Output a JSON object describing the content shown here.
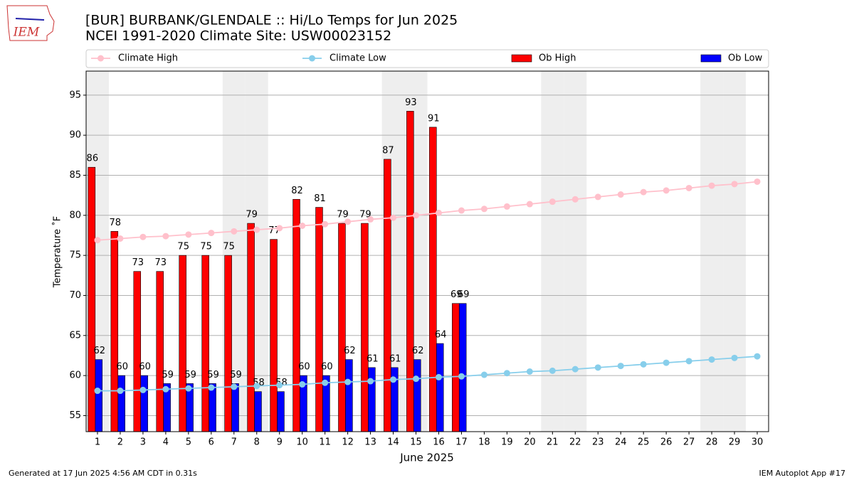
{
  "chart_data": {
    "type": "bar",
    "logo_text": "IEM",
    "title": "[BUR] BURBANK/GLENDALE :: Hi/Lo Temps for Jun 2025",
    "subtitle": "NCEI 1991-2020 Climate Site: USW00023152",
    "y_label": "Temperature ˚F",
    "x_label": "June 2025",
    "footer_left": "Generated at 17 Jun 2025 4:56 AM CDT in 0.31s",
    "footer_right": "IEM Autoplot App #17",
    "x": [
      1,
      2,
      3,
      4,
      5,
      6,
      7,
      8,
      9,
      10,
      11,
      12,
      13,
      14,
      15,
      16,
      17,
      18,
      19,
      20,
      21,
      22,
      23,
      24,
      25,
      26,
      27,
      28,
      29,
      30
    ],
    "xlim": [
      0.5,
      30.5
    ],
    "ylim": [
      53,
      98
    ],
    "yticks": [
      55,
      60,
      65,
      70,
      75,
      80,
      85,
      90,
      95
    ],
    "grid": true,
    "shaded_days": [
      1,
      7,
      8,
      14,
      15,
      21,
      22,
      28,
      29
    ],
    "series": [
      {
        "name": "Climate High",
        "kind": "line",
        "color": "#ffc0cb",
        "values": [
          76.9,
          77.1,
          77.3,
          77.4,
          77.6,
          77.8,
          78.0,
          78.2,
          78.4,
          78.7,
          78.9,
          79.2,
          79.5,
          79.7,
          80.0,
          80.3,
          80.6,
          80.8,
          81.1,
          81.4,
          81.7,
          82.0,
          82.3,
          82.6,
          82.9,
          83.1,
          83.4,
          83.7,
          83.9,
          84.2
        ]
      },
      {
        "name": "Climate Low",
        "kind": "line",
        "color": "#87ceeb",
        "values": [
          58.1,
          58.1,
          58.2,
          58.3,
          58.4,
          58.5,
          58.6,
          58.7,
          58.8,
          58.9,
          59.1,
          59.2,
          59.3,
          59.5,
          59.6,
          59.8,
          59.9,
          60.1,
          60.3,
          60.5,
          60.6,
          60.8,
          61.0,
          61.2,
          61.4,
          61.6,
          61.8,
          62.0,
          62.2,
          62.4
        ]
      },
      {
        "name": "Ob High",
        "kind": "bar",
        "color": "#ff0000",
        "values": [
          86,
          78,
          73,
          73,
          75,
          75,
          75,
          79,
          77,
          82,
          81,
          79,
          79,
          87,
          93,
          91,
          69,
          null,
          null,
          null,
          null,
          null,
          null,
          null,
          null,
          null,
          null,
          null,
          null,
          null
        ]
      },
      {
        "name": "Ob Low",
        "kind": "bar",
        "color": "#0000ff",
        "values": [
          62,
          60,
          60,
          59,
          59,
          59,
          59,
          58,
          58,
          60,
          60,
          62,
          61,
          61,
          62,
          64,
          69,
          null,
          null,
          null,
          null,
          null,
          null,
          null,
          null,
          null,
          null,
          null,
          null,
          null
        ]
      }
    ]
  }
}
